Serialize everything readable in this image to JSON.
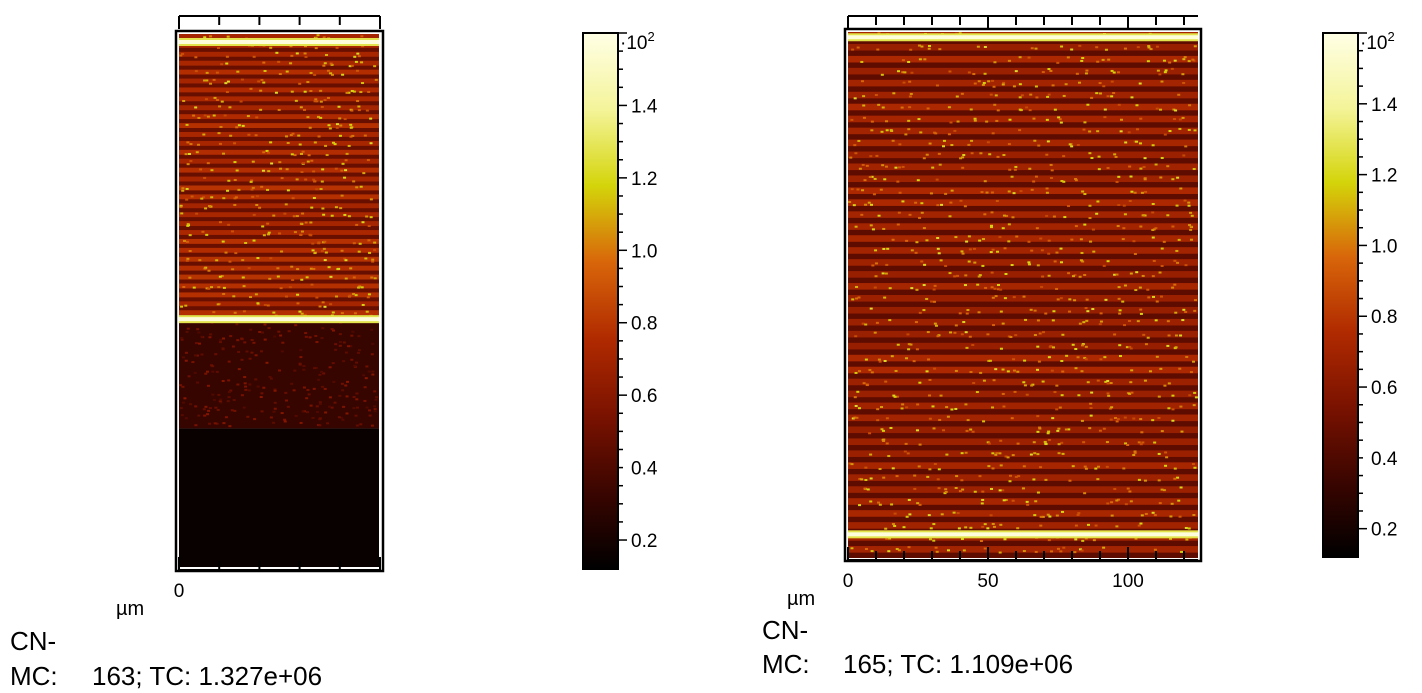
{
  "colormap": {
    "name": "hot",
    "stops": [
      "#000000",
      "#3a0500",
      "#7a1200",
      "#b02a00",
      "#d8650a",
      "#d4d40a",
      "#f4f49a",
      "#ffffe6"
    ]
  },
  "panels": [
    {
      "unit_label": "µm",
      "caption_line1": "CN-",
      "mc_label": "MC:",
      "mc_value": "163; TC: 1.327e+06",
      "x_tick_labels": [
        {
          "value": 0,
          "label": "0"
        }
      ],
      "colorbar": {
        "exponent_label": "·10",
        "exponent_sup": "2",
        "range": [
          0.12,
          1.6
        ],
        "tick_labels": [
          {
            "value": 0.2,
            "label": "0.2"
          },
          {
            "value": 0.4,
            "label": "0.4"
          },
          {
            "value": 0.6,
            "label": "0.6"
          },
          {
            "value": 0.8,
            "label": "0.8"
          },
          {
            "value": 1.0,
            "label": "1.0"
          },
          {
            "value": 1.2,
            "label": "1.2"
          },
          {
            "value": 1.4,
            "label": "1.4"
          }
        ]
      }
    },
    {
      "unit_label": "µm",
      "caption_line1": "CN-",
      "mc_label": "MC:",
      "mc_value": "165; TC: 1.109e+06",
      "x_tick_labels": [
        {
          "value": 0,
          "label": "0"
        },
        {
          "value": 50,
          "label": "50"
        },
        {
          "value": 100,
          "label": "100"
        }
      ],
      "colorbar": {
        "exponent_label": "·10",
        "exponent_sup": "2",
        "range": [
          0.12,
          1.6
        ],
        "tick_labels": [
          {
            "value": 0.2,
            "label": "0.2"
          },
          {
            "value": 0.4,
            "label": "0.4"
          },
          {
            "value": 0.6,
            "label": "0.6"
          },
          {
            "value": 0.8,
            "label": "0.8"
          },
          {
            "value": 1.0,
            "label": "1.0"
          },
          {
            "value": 1.2,
            "label": "1.2"
          },
          {
            "value": 1.4,
            "label": "1.4"
          }
        ]
      }
    }
  ],
  "chart_data": [
    {
      "type": "heatmap",
      "x": [
        0
      ],
      "colorbar_range": [
        12,
        160
      ],
      "colorbar_multiplier": "10^2",
      "bright_interfaces_fraction_from_top": [
        0.015,
        0.535
      ],
      "stripe_count_upper_region": 32,
      "regions": [
        {
          "from": 0.0,
          "to": 0.535,
          "pattern": "stripes",
          "level": 0.55
        },
        {
          "from": 0.535,
          "to": 0.74,
          "pattern": "noise",
          "level": 0.3
        },
        {
          "from": 0.74,
          "to": 1.0,
          "pattern": "flat",
          "level": 0.05
        }
      ]
    },
    {
      "type": "heatmap",
      "x": [
        0,
        50,
        100
      ],
      "xlim": [
        0,
        125
      ],
      "colorbar_range": [
        12,
        160
      ],
      "colorbar_multiplier": "10^2",
      "bright_interfaces_fraction_from_top": [
        0.01,
        0.955
      ],
      "stripe_count": 44,
      "regions": [
        {
          "from": 0.0,
          "to": 1.0,
          "pattern": "stripes",
          "level": 0.5
        }
      ]
    }
  ]
}
